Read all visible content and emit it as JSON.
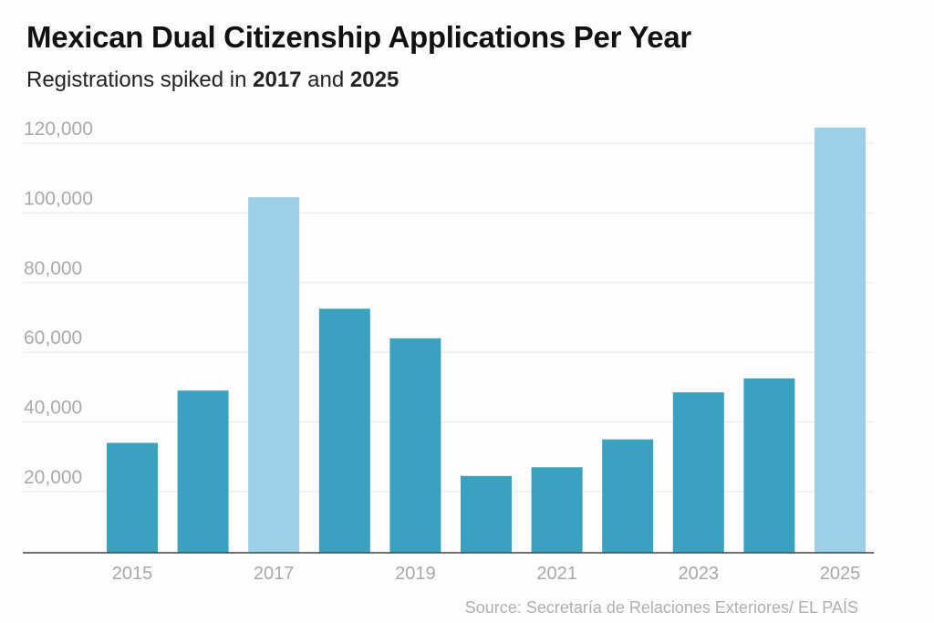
{
  "title": "Mexican Dual Citizenship Applications Per Year",
  "subtitle": {
    "pre": "Registrations spiked in ",
    "b1": "2017",
    "mid": " and ",
    "b2": "2025"
  },
  "source": "Source: Secretaría de Relaciones Exteriores/ EL PAÍS",
  "colors": {
    "normal": "#3aa2c0",
    "highlight": "#9ccfe8",
    "grid": "#e8e8e8",
    "axis": "#444444"
  },
  "chart_data": {
    "type": "bar",
    "title": "Mexican Dual Citizenship Applications Per Year",
    "subtitle": "Registrations spiked in 2017 and 2025",
    "categories": [
      "2015",
      "2016",
      "2017",
      "2018",
      "2019",
      "2020",
      "2021",
      "2022",
      "2023",
      "2024",
      "2025"
    ],
    "values": [
      34000,
      49000,
      104500,
      72500,
      64000,
      24500,
      27000,
      35000,
      48500,
      52500,
      124500
    ],
    "highlighted": [
      "2017",
      "2025"
    ],
    "x_tick_labels": [
      "2015",
      "2017",
      "2019",
      "2021",
      "2023",
      "2025"
    ],
    "y_tick_labels": [
      "20,000",
      "40,000",
      "60,000",
      "80,000",
      "100,000",
      "120,000"
    ],
    "y_ticks": [
      20000,
      40000,
      60000,
      80000,
      100000,
      120000
    ],
    "xlabel": "",
    "ylabel": "",
    "ylim": [
      0,
      125000
    ],
    "grid": true,
    "legend": "none"
  }
}
